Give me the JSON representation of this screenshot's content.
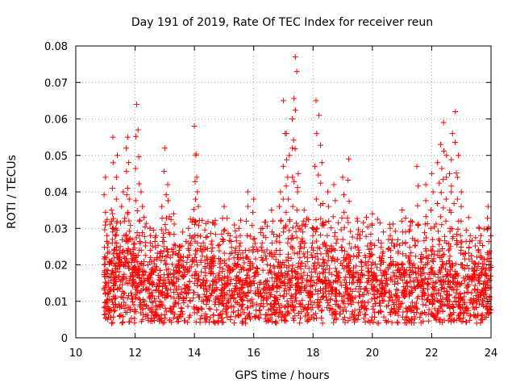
{
  "chart_data": {
    "type": "scatter",
    "title": "Day 191 of 2019, Rate Of TEC Index for receiver reun",
    "xlabel": "GPS time / hours",
    "ylabel": "ROTI / TECUs",
    "xlim": [
      10,
      24
    ],
    "ylim": [
      0,
      0.08
    ],
    "xticks": [
      10,
      12,
      14,
      16,
      18,
      20,
      22,
      24
    ],
    "xtick_labels": [
      "10",
      "12",
      "14",
      "16",
      "18",
      "20",
      "22",
      "24"
    ],
    "yticks": [
      0,
      0.01,
      0.02,
      0.03,
      0.04,
      0.05,
      0.06,
      0.07,
      0.08
    ],
    "ytick_labels": [
      "0",
      "0.01",
      "0.02",
      "0.03",
      "0.04",
      "0.05",
      "0.06",
      "0.07",
      "0.08"
    ],
    "grid": true,
    "marker": "+",
    "color": "#ff0000",
    "series": [
      {
        "name": "ROTI",
        "points": [
          [
            11.0,
            0.012
          ],
          [
            11.0,
            0.044
          ],
          [
            11.05,
            0.028
          ],
          [
            11.1,
            0.008
          ],
          [
            11.15,
            0.021
          ],
          [
            11.2,
            0.035
          ],
          [
            11.25,
            0.055
          ],
          [
            11.3,
            0.015
          ],
          [
            11.35,
            0.03
          ],
          [
            11.4,
            0.05
          ],
          [
            11.5,
            0.025
          ],
          [
            11.6,
            0.04
          ],
          [
            11.7,
            0.052
          ],
          [
            11.75,
            0.055
          ],
          [
            11.8,
            0.038
          ],
          [
            11.9,
            0.027
          ],
          [
            12.0,
            0.018
          ],
          [
            12.05,
            0.064
          ],
          [
            12.1,
            0.057
          ],
          [
            12.2,
            0.04
          ],
          [
            12.3,
            0.033
          ],
          [
            12.5,
            0.03
          ],
          [
            12.7,
            0.028
          ],
          [
            12.9,
            0.036
          ],
          [
            13.0,
            0.052
          ],
          [
            13.1,
            0.042
          ],
          [
            13.3,
            0.034
          ],
          [
            13.5,
            0.025
          ],
          [
            13.8,
            0.03
          ],
          [
            14.0,
            0.058
          ],
          [
            14.05,
            0.05
          ],
          [
            14.1,
            0.04
          ],
          [
            14.3,
            0.026
          ],
          [
            14.6,
            0.022
          ],
          [
            15.0,
            0.036
          ],
          [
            15.2,
            0.028
          ],
          [
            15.5,
            0.03
          ],
          [
            15.8,
            0.04
          ],
          [
            16.0,
            0.038
          ],
          [
            16.3,
            0.03
          ],
          [
            16.6,
            0.035
          ],
          [
            16.9,
            0.04
          ],
          [
            17.0,
            0.065
          ],
          [
            17.1,
            0.056
          ],
          [
            17.2,
            0.05
          ],
          [
            17.3,
            0.06
          ],
          [
            17.4,
            0.077
          ],
          [
            17.45,
            0.073
          ],
          [
            17.5,
            0.045
          ],
          [
            17.7,
            0.035
          ],
          [
            18.0,
            0.03
          ],
          [
            18.1,
            0.065
          ],
          [
            18.2,
            0.061
          ],
          [
            18.3,
            0.048
          ],
          [
            18.5,
            0.04
          ],
          [
            18.7,
            0.042
          ],
          [
            19.0,
            0.044
          ],
          [
            19.2,
            0.049
          ],
          [
            19.5,
            0.032
          ],
          [
            19.8,
            0.033
          ],
          [
            20.0,
            0.034
          ],
          [
            20.3,
            0.026
          ],
          [
            20.6,
            0.03
          ],
          [
            21.0,
            0.035
          ],
          [
            21.3,
            0.032
          ],
          [
            21.5,
            0.047
          ],
          [
            21.8,
            0.042
          ],
          [
            22.0,
            0.045
          ],
          [
            22.2,
            0.048
          ],
          [
            22.3,
            0.053
          ],
          [
            22.4,
            0.059
          ],
          [
            22.5,
            0.05
          ],
          [
            22.6,
            0.045
          ],
          [
            22.7,
            0.056
          ],
          [
            22.8,
            0.062
          ],
          [
            22.9,
            0.05
          ],
          [
            23.0,
            0.04
          ],
          [
            23.3,
            0.028
          ],
          [
            23.6,
            0.03
          ],
          [
            23.9,
            0.036
          ]
        ]
      }
    ],
    "band": {
      "note": "dense background scatter of ROTI values between these bounds across the observation window",
      "x_range": [
        10.95,
        24
      ],
      "y_min": 0.004,
      "y_typical": 0.013,
      "y_spread": 0.006
    }
  }
}
